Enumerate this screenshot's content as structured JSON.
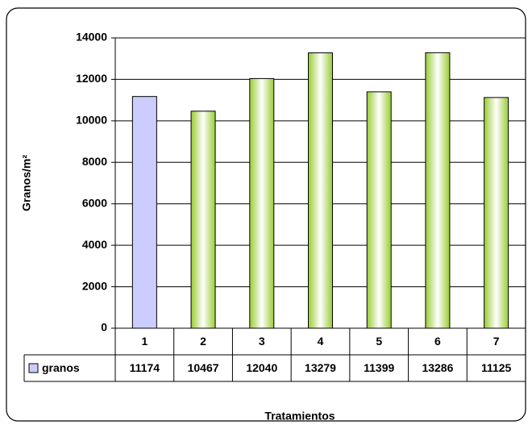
{
  "chart_data": {
    "type": "bar",
    "x_label": "Tratamientos",
    "y_label": "Granos/m²",
    "categories": [
      "1",
      "2",
      "3",
      "4",
      "5",
      "6",
      "7"
    ],
    "series": [
      {
        "name": "granos",
        "color": "#ccccff",
        "colors": [
          "#ccccff",
          "#99cc33",
          "#99cc33",
          "#99cc33",
          "#99cc33",
          "#99cc33",
          "#99cc33"
        ],
        "values": [
          11174,
          10467,
          12040,
          13279,
          11399,
          13286,
          11125
        ]
      }
    ],
    "ylim": [
      0,
      14000
    ],
    "yticks": [
      0,
      2000,
      4000,
      6000,
      8000,
      10000,
      12000,
      14000
    ],
    "grid": true,
    "data_table": true
  }
}
